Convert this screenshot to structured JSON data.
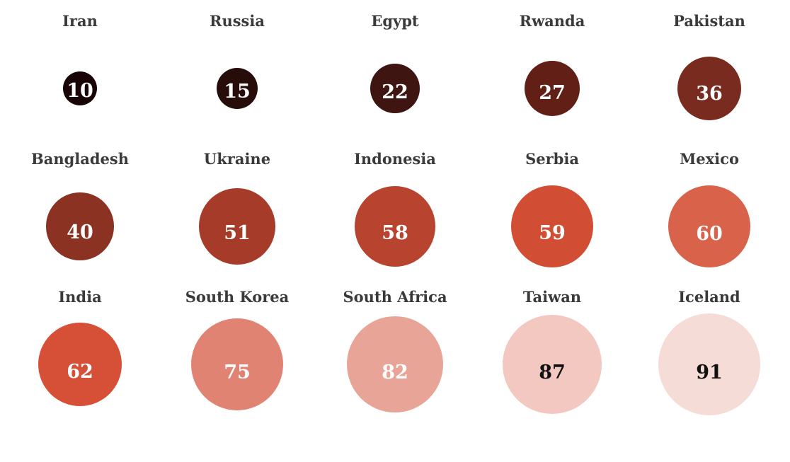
{
  "chart_data": {
    "type": "bubble-grid",
    "items": [
      {
        "country": "Iran",
        "value": 10,
        "color": "#180404",
        "text_color": "#ffffff"
      },
      {
        "country": "Russia",
        "value": 15,
        "color": "#260d0a",
        "text_color": "#ffffff"
      },
      {
        "country": "Egypt",
        "value": 22,
        "color": "#3e1510",
        "text_color": "#ffffff"
      },
      {
        "country": "Rwanda",
        "value": 27,
        "color": "#621f16",
        "text_color": "#ffffff"
      },
      {
        "country": "Pakistan",
        "value": 36,
        "color": "#7a2b1f",
        "text_color": "#ffffff"
      },
      {
        "country": "Bangladesh",
        "value": 40,
        "color": "#8b3223",
        "text_color": "#ffffff"
      },
      {
        "country": "Ukraine",
        "value": 51,
        "color": "#a53b28",
        "text_color": "#ffffff"
      },
      {
        "country": "Indonesia",
        "value": 58,
        "color": "#b8432e",
        "text_color": "#ffffff"
      },
      {
        "country": "Serbia",
        "value": 59,
        "color": "#d14e34",
        "text_color": "#ffffff"
      },
      {
        "country": "Mexico",
        "value": 60,
        "color": "#d9624a",
        "text_color": "#ffffff"
      },
      {
        "country": "India",
        "value": 62,
        "color": "#d55037",
        "text_color": "#ffffff"
      },
      {
        "country": "South Korea",
        "value": 75,
        "color": "#e08372",
        "text_color": "#ffffff"
      },
      {
        "country": "South Africa",
        "value": 82,
        "color": "#e8a597",
        "text_color": "#ffffff"
      },
      {
        "country": "Taiwan",
        "value": 87,
        "color": "#f2c8c0",
        "text_color": "#111111"
      },
      {
        "country": "Iceland",
        "value": 91,
        "color": "#f6dcd6",
        "text_color": "#111111"
      }
    ]
  }
}
